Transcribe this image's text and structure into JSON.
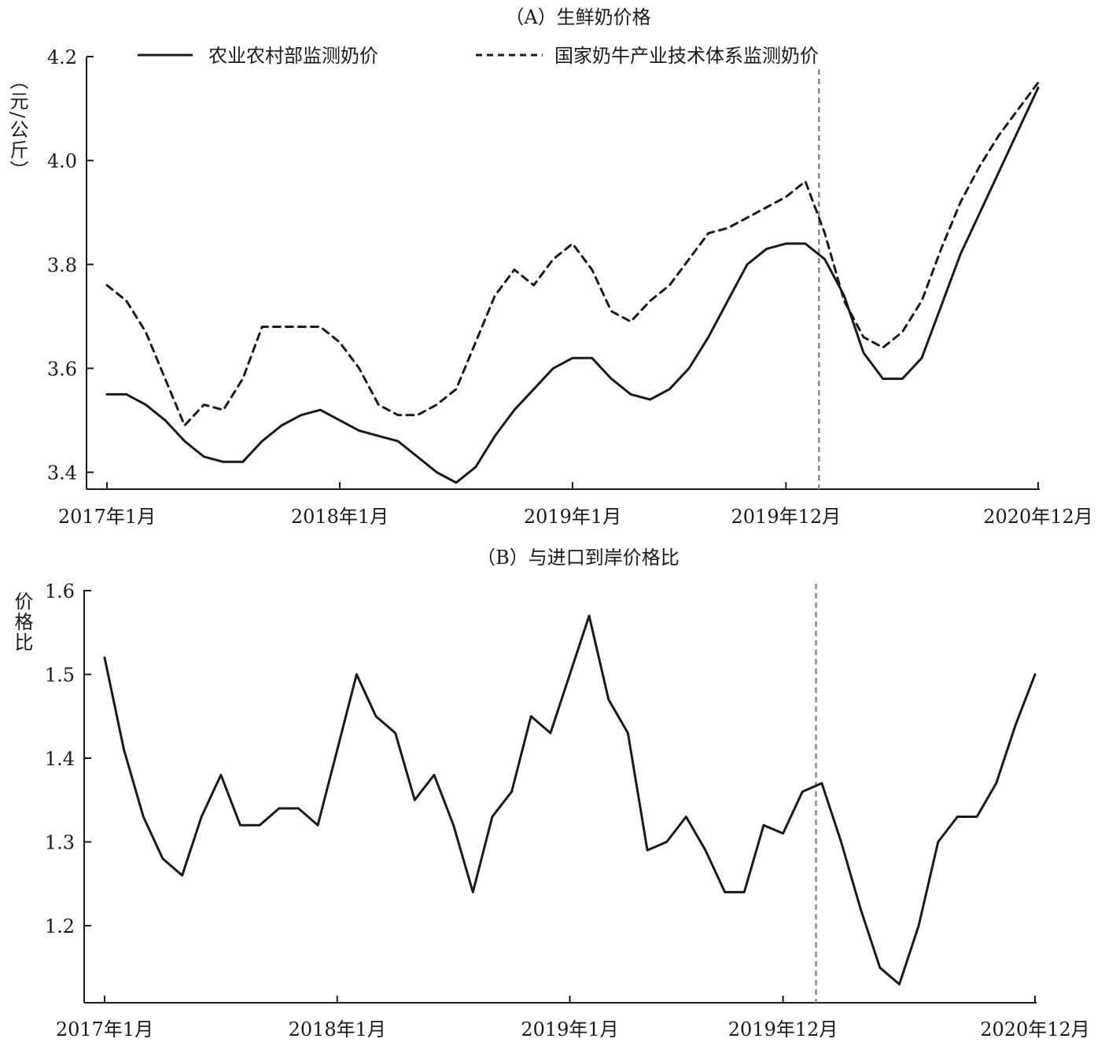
{
  "chart_data": [
    {
      "type": "line",
      "title": "（A）生鲜奶价格",
      "ylabel": "（元/公斤）",
      "ylim": [
        3.37,
        4.2
      ],
      "yticks": [
        "3.4",
        "3.6",
        "3.8",
        "4.0",
        "4.2"
      ],
      "xlabels": [
        "2017年1月",
        "2018年1月",
        "2019年1月",
        "2019年12月",
        "2020年12月"
      ],
      "legend_position": "top",
      "reference_line_month": 36.7,
      "series": [
        {
          "name": "农业农村部监测奶价",
          "style": "solid",
          "color": "#1a1a1a",
          "points": [
            [
              0,
              3.55
            ],
            [
              1,
              3.55
            ],
            [
              2,
              3.53
            ],
            [
              3,
              3.5
            ],
            [
              4,
              3.46
            ],
            [
              5,
              3.43
            ],
            [
              6,
              3.42
            ],
            [
              7,
              3.42
            ],
            [
              8,
              3.46
            ],
            [
              9,
              3.49
            ],
            [
              10,
              3.51
            ],
            [
              11,
              3.52
            ],
            [
              12,
              3.5
            ],
            [
              13,
              3.48
            ],
            [
              14,
              3.47
            ],
            [
              15,
              3.46
            ],
            [
              16,
              3.43
            ],
            [
              17,
              3.4
            ],
            [
              18,
              3.38
            ],
            [
              19,
              3.41
            ],
            [
              20,
              3.47
            ],
            [
              21,
              3.52
            ],
            [
              22,
              3.56
            ],
            [
              23,
              3.6
            ],
            [
              24,
              3.62
            ],
            [
              25,
              3.62
            ],
            [
              26,
              3.58
            ],
            [
              27,
              3.55
            ],
            [
              28,
              3.54
            ],
            [
              29,
              3.56
            ],
            [
              30,
              3.6
            ],
            [
              31,
              3.66
            ],
            [
              32,
              3.73
            ],
            [
              33,
              3.8
            ],
            [
              34,
              3.83
            ],
            [
              35,
              3.84
            ],
            [
              36,
              3.84
            ],
            [
              37,
              3.81
            ],
            [
              38,
              3.74
            ],
            [
              39,
              3.63
            ],
            [
              40,
              3.58
            ],
            [
              41,
              3.58
            ],
            [
              42,
              3.62
            ],
            [
              43,
              3.72
            ],
            [
              44,
              3.82
            ],
            [
              45,
              3.9
            ],
            [
              46,
              3.98
            ],
            [
              47,
              4.06
            ],
            [
              48,
              4.14
            ]
          ]
        },
        {
          "name": "国家奶牛产业技术体系监测奶价",
          "style": "dashed",
          "color": "#1a1a1a",
          "points": [
            [
              0,
              3.76
            ],
            [
              1,
              3.73
            ],
            [
              2,
              3.67
            ],
            [
              3,
              3.58
            ],
            [
              4,
              3.49
            ],
            [
              5,
              3.53
            ],
            [
              6,
              3.52
            ],
            [
              7,
              3.58
            ],
            [
              8,
              3.68
            ],
            [
              9,
              3.68
            ],
            [
              10,
              3.68
            ],
            [
              11,
              3.68
            ],
            [
              12,
              3.65
            ],
            [
              13,
              3.6
            ],
            [
              14,
              3.53
            ],
            [
              15,
              3.51
            ],
            [
              16,
              3.51
            ],
            [
              17,
              3.53
            ],
            [
              18,
              3.56
            ],
            [
              19,
              3.65
            ],
            [
              20,
              3.74
            ],
            [
              21,
              3.79
            ],
            [
              22,
              3.76
            ],
            [
              23,
              3.81
            ],
            [
              24,
              3.84
            ],
            [
              25,
              3.79
            ],
            [
              26,
              3.71
            ],
            [
              27,
              3.69
            ],
            [
              28,
              3.73
            ],
            [
              29,
              3.76
            ],
            [
              30,
              3.81
            ],
            [
              31,
              3.86
            ],
            [
              32,
              3.87
            ],
            [
              33,
              3.89
            ],
            [
              34,
              3.91
            ],
            [
              35,
              3.93
            ],
            [
              36,
              3.96
            ],
            [
              37,
              3.86
            ],
            [
              38,
              3.73
            ],
            [
              39,
              3.66
            ],
            [
              40,
              3.64
            ],
            [
              41,
              3.67
            ],
            [
              42,
              3.73
            ],
            [
              43,
              3.83
            ],
            [
              44,
              3.92
            ],
            [
              45,
              3.99
            ],
            [
              46,
              4.05
            ],
            [
              47,
              4.1
            ],
            [
              48,
              4.15
            ]
          ]
        }
      ]
    },
    {
      "type": "line",
      "title": "（B）与进口到岸价格比",
      "ylabel": "价格比",
      "ylim": [
        1.12,
        1.6
      ],
      "yticks": [
        "1.2",
        "1.3",
        "1.4",
        "1.5",
        "1.6"
      ],
      "xlabels": [
        "2017年1月",
        "2018年1月",
        "2019年1月",
        "2019年12月",
        "2020年12月"
      ],
      "reference_line_month": 36.7,
      "series": [
        {
          "name": "",
          "style": "solid",
          "color": "#1a1a1a",
          "points": [
            [
              0,
              1.52
            ],
            [
              1,
              1.41
            ],
            [
              2,
              1.33
            ],
            [
              3,
              1.28
            ],
            [
              4,
              1.26
            ],
            [
              5,
              1.33
            ],
            [
              6,
              1.38
            ],
            [
              7,
              1.32
            ],
            [
              8,
              1.32
            ],
            [
              9,
              1.34
            ],
            [
              10,
              1.34
            ],
            [
              11,
              1.32
            ],
            [
              12,
              1.41
            ],
            [
              13,
              1.5
            ],
            [
              14,
              1.45
            ],
            [
              15,
              1.43
            ],
            [
              16,
              1.35
            ],
            [
              17,
              1.38
            ],
            [
              18,
              1.32
            ],
            [
              19,
              1.24
            ],
            [
              20,
              1.33
            ],
            [
              21,
              1.36
            ],
            [
              22,
              1.45
            ],
            [
              23,
              1.43
            ],
            [
              24,
              1.5
            ],
            [
              25,
              1.57
            ],
            [
              26,
              1.47
            ],
            [
              27,
              1.43
            ],
            [
              28,
              1.29
            ],
            [
              29,
              1.3
            ],
            [
              30,
              1.33
            ],
            [
              31,
              1.29
            ],
            [
              32,
              1.24
            ],
            [
              33,
              1.24
            ],
            [
              34,
              1.32
            ],
            [
              35,
              1.31
            ],
            [
              36,
              1.36
            ],
            [
              37,
              1.37
            ],
            [
              38,
              1.3
            ],
            [
              39,
              1.22
            ],
            [
              40,
              1.15
            ],
            [
              41,
              1.13
            ],
            [
              42,
              1.2
            ],
            [
              43,
              1.3
            ],
            [
              44,
              1.33
            ],
            [
              45,
              1.33
            ],
            [
              46,
              1.37
            ],
            [
              47,
              1.44
            ],
            [
              48,
              1.5
            ]
          ]
        }
      ]
    }
  ]
}
